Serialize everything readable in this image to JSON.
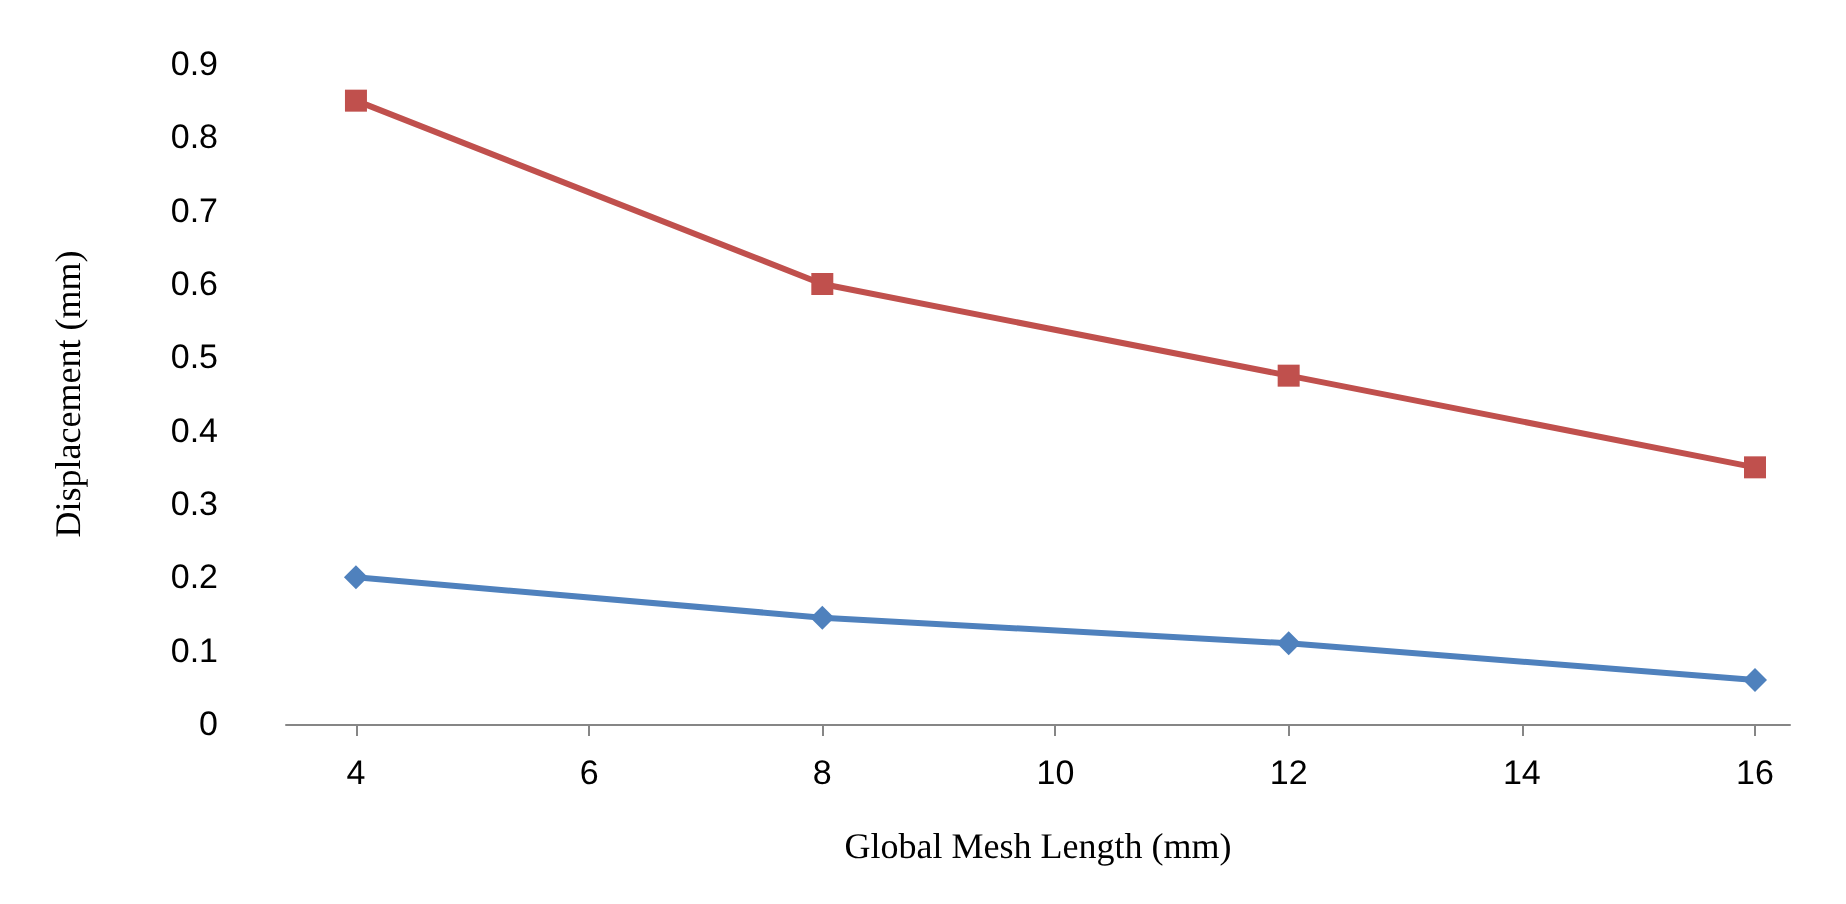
{
  "chart_data": {
    "type": "line",
    "xlabel": "Global Mesh Length (mm)",
    "ylabel": "Displacement (mm)",
    "x": [
      4,
      8,
      12,
      16
    ],
    "series": [
      {
        "color": "#4f81bd",
        "marker": "diamond",
        "values": [
          0.2,
          0.145,
          0.11,
          0.06
        ]
      },
      {
        "color": "#c0504d",
        "marker": "square",
        "values": [
          0.85,
          0.6,
          0.475,
          0.35
        ]
      }
    ],
    "xlim": [
      3.4,
      16.3
    ],
    "xticks": [
      4,
      6,
      8,
      10,
      12,
      14,
      16
    ],
    "ylim": [
      0,
      0.9
    ],
    "yticks": [
      0,
      0.1,
      0.2,
      0.3,
      0.4,
      0.5,
      0.6,
      0.7,
      0.8,
      0.9
    ],
    "grid": false,
    "line_style": "solid"
  }
}
